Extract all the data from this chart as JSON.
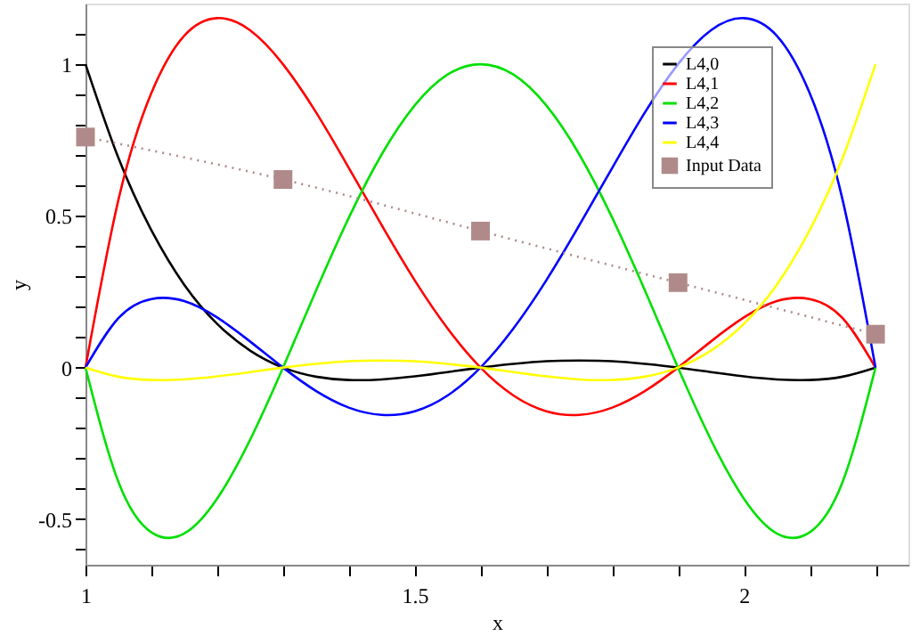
{
  "chart_data": {
    "type": "line",
    "xlabel": "x",
    "ylabel": "y",
    "x": [
      1,
      1.05,
      1.1,
      1.15,
      1.2,
      1.25,
      1.3,
      1.35,
      1.4,
      1.45,
      1.5,
      1.55,
      1.6,
      1.65,
      1.7,
      1.75,
      1.8,
      1.85,
      1.9,
      1.95,
      2,
      2.05,
      2.1,
      2.15,
      2.2
    ],
    "series": [
      {
        "name": "L4,0",
        "color": "#000000",
        "values": [
          1,
          0.691,
          0.453,
          0.273,
          0.144,
          0.056,
          0,
          -0.03,
          -0.041,
          -0.039,
          -0.029,
          -0.015,
          0,
          0.012,
          0.021,
          0.023,
          0.021,
          0.012,
          0,
          -0.015,
          -0.029,
          -0.039,
          -0.041,
          -0.03,
          0
        ]
      },
      {
        "name": "L4,1",
        "color": "#ff0000",
        "values": [
          0,
          0.553,
          0.905,
          1.094,
          1.152,
          1.112,
          1,
          0.842,
          0.658,
          0.469,
          0.288,
          0.129,
          0,
          -0.092,
          -0.144,
          -0.156,
          -0.132,
          -0.077,
          0,
          0.086,
          0.165,
          0.219,
          0.226,
          0.163,
          0
        ]
      },
      {
        "name": "L4,2",
        "color": "#00e000",
        "values": [
          0,
          -0.377,
          -0.543,
          -0.547,
          -0.432,
          -0.238,
          0,
          0.253,
          0.494,
          0.703,
          0.864,
          0.966,
          1,
          0.966,
          0.864,
          0.703,
          0.494,
          0.253,
          0,
          -0.238,
          -0.432,
          -0.547,
          -0.543,
          -0.377,
          0
        ]
      },
      {
        "name": "L4,3",
        "color": "#0000ff",
        "values": [
          0,
          0.163,
          0.226,
          0.219,
          0.165,
          0.086,
          0,
          -0.077,
          -0.132,
          -0.156,
          -0.144,
          -0.092,
          0,
          0.129,
          0.288,
          0.469,
          0.658,
          0.842,
          1,
          1.112,
          1.152,
          1.094,
          0.905,
          0.553,
          0
        ]
      },
      {
        "name": "L4,4",
        "color": "#ffff00",
        "values": [
          0,
          -0.03,
          -0.041,
          -0.039,
          -0.029,
          -0.015,
          0,
          0.012,
          0.021,
          0.023,
          0.021,
          0.012,
          0,
          -0.015,
          -0.029,
          -0.039,
          -0.041,
          -0.03,
          0,
          0.056,
          0.144,
          0.273,
          0.453,
          0.691,
          1
        ]
      },
      {
        "name": "Input Data",
        "color": "#b08a8a",
        "x": [
          1,
          1.3,
          1.6,
          1.9,
          2.2
        ],
        "values": [
          0.76,
          0.62,
          0.45,
          0.28,
          0.11
        ],
        "marker": "square",
        "line_style": "dotted"
      }
    ],
    "xlim": [
      1,
      2.25
    ],
    "ylim": [
      -0.65,
      1.2
    ],
    "xticks": [
      1,
      {
        "value": 1.1,
        "label": null
      },
      {
        "value": 1.2,
        "label": null
      },
      {
        "value": 1.3,
        "label": null
      },
      {
        "value": 1.4,
        "label": null
      },
      1.5,
      {
        "value": 1.6,
        "label": null
      },
      {
        "value": 1.7,
        "label": null
      },
      {
        "value": 1.8,
        "label": null
      },
      {
        "value": 1.9,
        "label": null
      },
      2,
      {
        "value": 2.1,
        "label": null
      },
      {
        "value": 2.2,
        "label": null
      }
    ],
    "yticks": [
      {
        "value": -0.6,
        "label": null
      },
      -0.5,
      {
        "value": -0.4,
        "label": null
      },
      {
        "value": -0.3,
        "label": null
      },
      {
        "value": -0.2,
        "label": null
      },
      {
        "value": -0.1,
        "label": null
      },
      0,
      {
        "value": 0.1,
        "label": null
      },
      {
        "value": 0.2,
        "label": null
      },
      {
        "value": 0.3,
        "label": null
      },
      {
        "value": 0.4,
        "label": null
      },
      0.5,
      {
        "value": 0.6,
        "label": null
      },
      {
        "value": 0.7,
        "label": null
      },
      {
        "value": 0.8,
        "label": null
      },
      {
        "value": 0.9,
        "label": null
      },
      1,
      {
        "value": 1.1,
        "label": null
      }
    ],
    "grid": false,
    "legend": "top right",
    "marker": "none",
    "line_style": "solid"
  }
}
